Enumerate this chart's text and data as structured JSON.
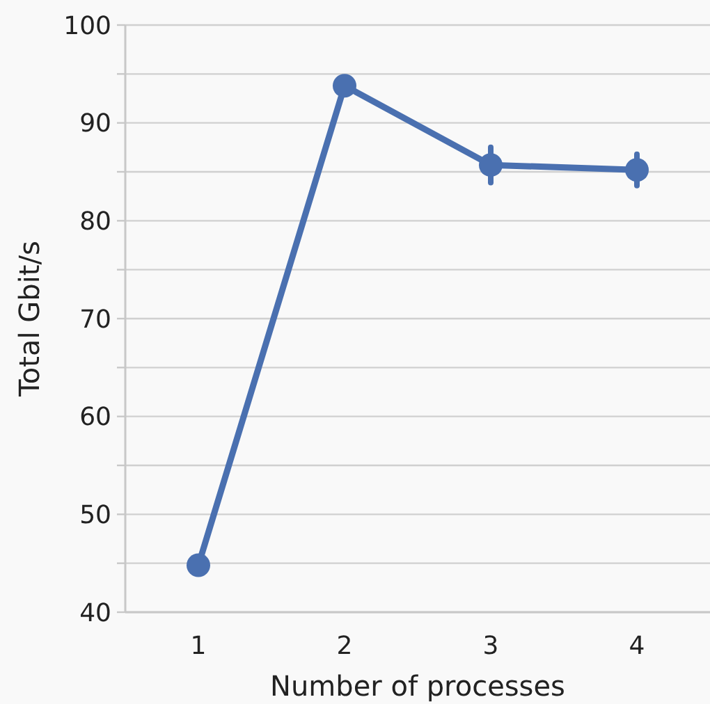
{
  "chart_data": {
    "type": "line",
    "xlabel": "Number of processes",
    "ylabel": "Total Gbit/s",
    "categories": [
      "1",
      "2",
      "3",
      "4"
    ],
    "series": [
      {
        "color": "#4a70b0",
        "values": [
          44.8,
          93.8,
          85.7,
          85.2
        ],
        "errors": [
          null,
          null,
          1.8,
          1.6
        ]
      }
    ],
    "ylim": [
      40,
      100
    ],
    "yticks": [
      40,
      {
        "value": 45,
        "label": null
      },
      50,
      {
        "value": 55,
        "label": null
      },
      60,
      {
        "value": 65,
        "label": null
      },
      70,
      {
        "value": 75,
        "label": null
      },
      80,
      {
        "value": 85,
        "label": null
      },
      90,
      {
        "value": 95,
        "label": null
      },
      100
    ],
    "grid": "y",
    "marker": "circle",
    "line_style": "solid"
  }
}
